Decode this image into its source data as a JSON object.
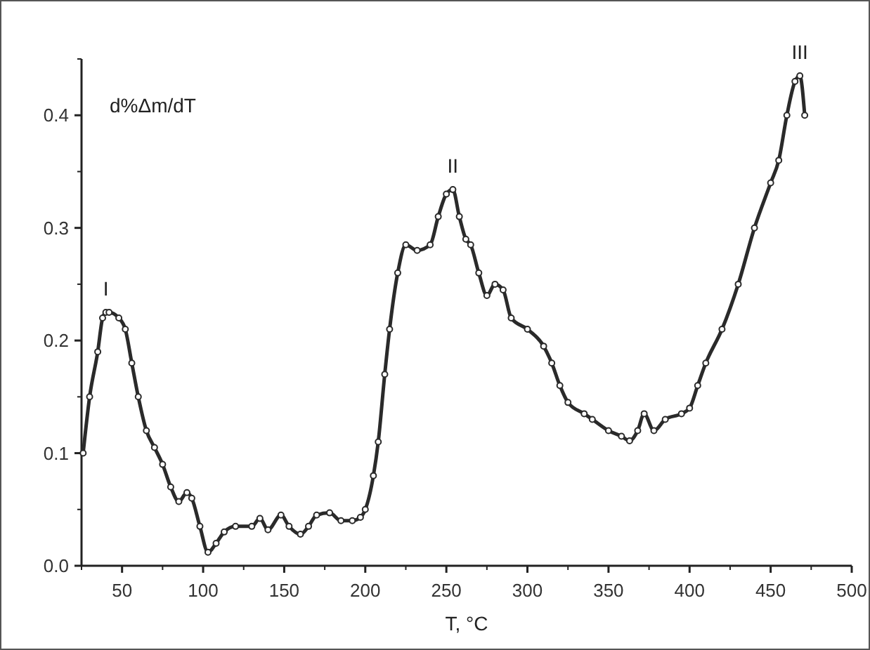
{
  "chart_data": {
    "type": "line",
    "ylabel": "d%Δm/dT",
    "xlabel": "T, °C",
    "xlim": [
      25,
      500
    ],
    "ylim": [
      0,
      0.45
    ],
    "xticks": [
      50,
      100,
      150,
      200,
      250,
      300,
      350,
      400,
      450,
      500
    ],
    "yticks": [
      {
        "value": 0,
        "label": "0.0"
      },
      0.1,
      0.2,
      0.3,
      0.4
    ],
    "marker": "circle",
    "line_style": "solid",
    "annotations": [
      {
        "text": "I",
        "x": 40,
        "y": 0.225
      },
      {
        "text": "II",
        "x": 254,
        "y": 0.334
      },
      {
        "text": "III",
        "x": 468,
        "y": 0.435
      }
    ],
    "series": [
      {
        "color": "#2a2a2a",
        "x": [
          26,
          30,
          35,
          38,
          40,
          42,
          48,
          52,
          56,
          60,
          65,
          70,
          75,
          80,
          85,
          90,
          93,
          98,
          103,
          108,
          113,
          120,
          130,
          135,
          140,
          148,
          153,
          160,
          165,
          170,
          178,
          185,
          192,
          197,
          200,
          205,
          208,
          212,
          215,
          220,
          225,
          232,
          240,
          245,
          250,
          254,
          258,
          262,
          265,
          270,
          275,
          280,
          285,
          290,
          300,
          310,
          315,
          320,
          325,
          335,
          340,
          350,
          358,
          363,
          368,
          372,
          378,
          385,
          395,
          400,
          405,
          410,
          420,
          430,
          440,
          450,
          455,
          460,
          465,
          468,
          471
        ],
        "values": [
          0.1,
          0.15,
          0.19,
          0.22,
          0.225,
          0.225,
          0.22,
          0.21,
          0.18,
          0.15,
          0.12,
          0.105,
          0.09,
          0.07,
          0.057,
          0.065,
          0.06,
          0.035,
          0.012,
          0.02,
          0.03,
          0.035,
          0.035,
          0.042,
          0.032,
          0.045,
          0.035,
          0.028,
          0.035,
          0.045,
          0.047,
          0.04,
          0.04,
          0.043,
          0.05,
          0.08,
          0.11,
          0.17,
          0.21,
          0.26,
          0.285,
          0.28,
          0.285,
          0.31,
          0.33,
          0.334,
          0.31,
          0.29,
          0.285,
          0.26,
          0.24,
          0.25,
          0.245,
          0.22,
          0.21,
          0.195,
          0.18,
          0.16,
          0.145,
          0.135,
          0.13,
          0.12,
          0.115,
          0.111,
          0.12,
          0.135,
          0.12,
          0.13,
          0.135,
          0.14,
          0.16,
          0.18,
          0.21,
          0.25,
          0.3,
          0.34,
          0.36,
          0.4,
          0.43,
          0.435,
          0.4
        ]
      }
    ]
  }
}
